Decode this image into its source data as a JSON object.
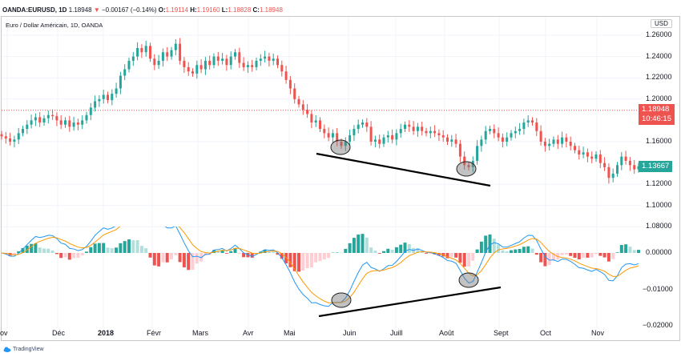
{
  "header": {
    "symbol": "OANDA:EURUSD, 1D",
    "last": "1.18948",
    "arrow": "▼",
    "change": "−0.00167 (−0.14%)",
    "o_label": "O:",
    "o": "1.19114",
    "h_label": "H:",
    "h": "1.19160",
    "l_label": "L:",
    "l": "1.18828",
    "c_label": "C:",
    "c": "1.18948"
  },
  "legend": "Euro / Dollar Américain, 1D, OANDA",
  "currency": "USD",
  "price_tag": {
    "price": "1.18948",
    "countdown": "10:46:15",
    "color": "#ef5350"
  },
  "cursor_tag": {
    "price": "1.13667",
    "color": "#26a69a"
  },
  "price_axis": [
    "1.26000",
    "1.24000",
    "1.22000",
    "1.20000",
    "1.16000",
    "1.12000",
    "1.10000",
    "1.08000"
  ],
  "macd_axis": [
    "0.00000",
    "−0.01000",
    "−0.02000"
  ],
  "time_axis": [
    "ov",
    "Déc",
    "2018",
    "Févr",
    "Mars",
    "Avr",
    "Mai",
    "Juin",
    "Juill",
    "Août",
    "Sept",
    "Oct",
    "Nov"
  ],
  "branding": "TradingView",
  "colors": {
    "up": "#26a69a",
    "down": "#ef5350",
    "macd": "#2196f3",
    "signal": "#ff9800",
    "annotation": "#000000"
  },
  "chart_data": {
    "type": "candlestick",
    "price_ylim": [
      1.08,
      1.26
    ],
    "macd_ylim": [
      -0.02,
      0.008
    ],
    "closes": [
      1.165,
      1.163,
      1.16,
      1.162,
      1.168,
      1.172,
      1.176,
      1.18,
      1.183,
      1.178,
      1.182,
      1.185,
      1.184,
      1.18,
      1.176,
      1.18,
      1.174,
      1.178,
      1.176,
      1.18,
      1.185,
      1.192,
      1.198,
      1.2,
      1.204,
      1.199,
      1.205,
      1.21,
      1.222,
      1.228,
      1.236,
      1.24,
      1.248,
      1.244,
      1.25,
      1.238,
      1.232,
      1.236,
      1.244,
      1.24,
      1.246,
      1.252,
      1.236,
      1.23,
      1.226,
      1.224,
      1.232,
      1.228,
      1.236,
      1.232,
      1.24,
      1.236,
      1.238,
      1.232,
      1.24,
      1.244,
      1.234,
      1.23,
      1.232,
      1.23,
      1.236,
      1.238,
      1.24,
      1.236,
      1.238,
      1.232,
      1.226,
      1.218,
      1.21,
      1.2,
      1.195,
      1.19,
      1.186,
      1.178,
      1.18,
      1.172,
      1.168,
      1.164,
      1.168,
      1.16,
      1.156,
      1.16,
      1.166,
      1.172,
      1.176,
      1.178,
      1.174,
      1.16,
      1.162,
      1.158,
      1.164,
      1.166,
      1.162,
      1.168,
      1.172,
      1.176,
      1.174,
      1.17,
      1.174,
      1.17,
      1.168,
      1.17,
      1.168,
      1.166,
      1.164,
      1.16,
      1.162,
      1.158,
      1.146,
      1.138,
      1.136,
      1.142,
      1.156,
      1.162,
      1.17,
      1.172,
      1.168,
      1.164,
      1.16,
      1.164,
      1.168,
      1.17,
      1.172,
      1.178,
      1.18,
      1.178,
      1.17,
      1.16,
      1.156,
      1.158,
      1.162,
      1.158,
      1.164,
      1.16,
      1.156,
      1.152,
      1.148,
      1.15,
      1.146,
      1.144,
      1.148,
      1.14,
      1.136,
      1.126,
      1.13,
      1.138,
      1.146,
      1.142,
      1.138,
      1.134,
      1.137
    ]
  }
}
